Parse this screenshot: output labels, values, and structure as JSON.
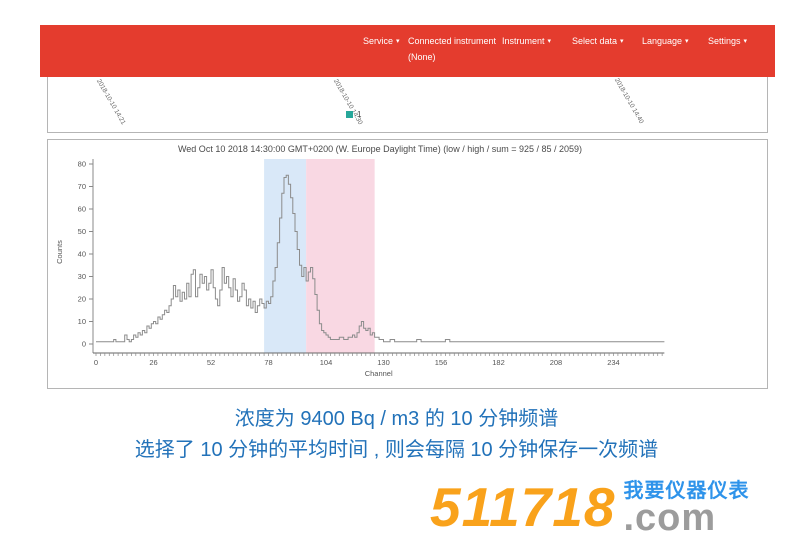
{
  "navbar": {
    "bg_color": "#e43c2e",
    "items": [
      {
        "label": "Service",
        "has_dropdown": true
      },
      {
        "label": "Connected instrument",
        "sublabel": "(None)",
        "has_dropdown": false
      },
      {
        "label": "Instrument",
        "has_dropdown": true
      },
      {
        "label": "Select data",
        "has_dropdown": true
      },
      {
        "label": "Language",
        "has_dropdown": true
      },
      {
        "label": "Settings",
        "has_dropdown": true
      }
    ],
    "caret": "▾"
  },
  "timeline": {
    "dates": [
      "2018-10-10 14:21",
      "2018-10-10 14:30",
      "2018-10-10 14:40"
    ],
    "legend": {
      "label": "1",
      "color": "#27a79a"
    }
  },
  "chart_data": {
    "type": "line",
    "title": "Wed Oct 10 2018 14:30:00 GMT+0200 (W. Europe Daylight Time) (low / high / sum = 925 / 85 / 2059)",
    "xlabel": "Channel",
    "ylabel": "Counts",
    "xlim": [
      0,
      257
    ],
    "ylim": [
      0,
      80
    ],
    "x_ticks": [
      0,
      26,
      52,
      78,
      104,
      130,
      156,
      182,
      208,
      234
    ],
    "y_ticks": [
      0,
      10,
      20,
      30,
      40,
      50,
      60,
      70,
      80
    ],
    "grid": false,
    "legend_position": "none",
    "line_color": "#8c8c8c",
    "regions": [
      {
        "name": "roi-low",
        "from": 76,
        "to": 95,
        "color": "#d9e8f8"
      },
      {
        "name": "roi-high",
        "from": 95,
        "to": 126,
        "color": "#f9d8e3"
      }
    ],
    "series": [
      {
        "name": "1",
        "step": true,
        "points": [
          [
            0,
            1
          ],
          [
            2,
            1
          ],
          [
            4,
            1
          ],
          [
            6,
            1
          ],
          [
            8,
            2
          ],
          [
            9,
            1
          ],
          [
            11,
            1
          ],
          [
            13,
            4
          ],
          [
            14,
            2
          ],
          [
            15,
            1
          ],
          [
            16,
            2
          ],
          [
            17,
            4
          ],
          [
            18,
            3
          ],
          [
            19,
            5
          ],
          [
            20,
            4
          ],
          [
            21,
            6
          ],
          [
            22,
            5
          ],
          [
            23,
            8
          ],
          [
            24,
            7
          ],
          [
            25,
            9
          ],
          [
            26,
            10
          ],
          [
            27,
            9
          ],
          [
            28,
            12
          ],
          [
            29,
            11
          ],
          [
            30,
            13
          ],
          [
            31,
            15
          ],
          [
            32,
            14
          ],
          [
            33,
            17
          ],
          [
            34,
            20
          ],
          [
            35,
            26
          ],
          [
            36,
            21
          ],
          [
            37,
            24
          ],
          [
            38,
            19
          ],
          [
            39,
            23
          ],
          [
            40,
            20
          ],
          [
            41,
            27
          ],
          [
            42,
            21
          ],
          [
            43,
            31
          ],
          [
            44,
            33
          ],
          [
            45,
            21
          ],
          [
            46,
            25
          ],
          [
            47,
            31
          ],
          [
            48,
            27
          ],
          [
            49,
            30
          ],
          [
            50,
            24
          ],
          [
            51,
            27
          ],
          [
            52,
            33
          ],
          [
            53,
            25
          ],
          [
            54,
            20
          ],
          [
            55,
            17
          ],
          [
            56,
            24
          ],
          [
            57,
            34
          ],
          [
            58,
            27
          ],
          [
            59,
            30
          ],
          [
            60,
            25
          ],
          [
            61,
            21
          ],
          [
            62,
            29
          ],
          [
            63,
            24
          ],
          [
            64,
            19
          ],
          [
            65,
            21
          ],
          [
            66,
            27
          ],
          [
            67,
            24
          ],
          [
            68,
            17
          ],
          [
            69,
            20
          ],
          [
            70,
            16
          ],
          [
            71,
            19
          ],
          [
            72,
            14
          ],
          [
            73,
            17
          ],
          [
            74,
            20
          ],
          [
            75,
            18
          ],
          [
            76,
            16
          ],
          [
            77,
            19
          ],
          [
            78,
            18
          ],
          [
            79,
            21
          ],
          [
            80,
            28
          ],
          [
            81,
            34
          ],
          [
            82,
            45
          ],
          [
            83,
            56
          ],
          [
            84,
            67
          ],
          [
            85,
            74
          ],
          [
            86,
            75
          ],
          [
            87,
            71
          ],
          [
            88,
            65
          ],
          [
            89,
            58
          ],
          [
            90,
            50
          ],
          [
            91,
            42
          ],
          [
            92,
            35
          ],
          [
            93,
            30
          ],
          [
            94,
            34
          ],
          [
            95,
            28
          ],
          [
            96,
            32
          ],
          [
            97,
            34
          ],
          [
            98,
            29
          ],
          [
            99,
            22
          ],
          [
            100,
            15
          ],
          [
            101,
            9
          ],
          [
            102,
            6
          ],
          [
            103,
            5
          ],
          [
            104,
            4
          ],
          [
            105,
            3
          ],
          [
            106,
            2
          ],
          [
            108,
            2
          ],
          [
            110,
            3
          ],
          [
            112,
            2
          ],
          [
            114,
            3
          ],
          [
            116,
            4
          ],
          [
            117,
            3
          ],
          [
            118,
            5
          ],
          [
            119,
            8
          ],
          [
            120,
            10
          ],
          [
            121,
            7
          ],
          [
            122,
            6
          ],
          [
            123,
            7
          ],
          [
            124,
            4
          ],
          [
            125,
            5
          ],
          [
            126,
            3
          ],
          [
            127,
            3
          ],
          [
            128,
            2
          ],
          [
            130,
            1
          ],
          [
            133,
            2
          ],
          [
            135,
            1
          ],
          [
            140,
            1
          ],
          [
            145,
            2
          ],
          [
            147,
            1
          ],
          [
            150,
            1
          ],
          [
            155,
            1
          ],
          [
            158,
            2
          ],
          [
            160,
            1
          ],
          [
            165,
            1
          ],
          [
            170,
            1
          ],
          [
            175,
            1
          ],
          [
            180,
            1
          ],
          [
            185,
            1
          ],
          [
            190,
            1
          ],
          [
            195,
            1
          ],
          [
            200,
            1
          ],
          [
            210,
            1
          ],
          [
            220,
            1
          ],
          [
            230,
            1
          ],
          [
            240,
            1
          ],
          [
            250,
            1
          ],
          [
            257,
            1
          ]
        ]
      }
    ]
  },
  "caption": {
    "line1": "浓度为 9400 Bq / m3 的 10 分钟频谱",
    "line2": "选择了 10 分钟的平均时间 , 则会每隔 10 分钟保存一次频谱",
    "color": "#2272b9"
  },
  "watermark": {
    "number": "511718",
    "domain": ".com",
    "tagline": "我要仪器仪表",
    "number_color": "#f9a21b",
    "domain_color": "#9c9c9c",
    "tagline_color": "#2e93ea"
  }
}
